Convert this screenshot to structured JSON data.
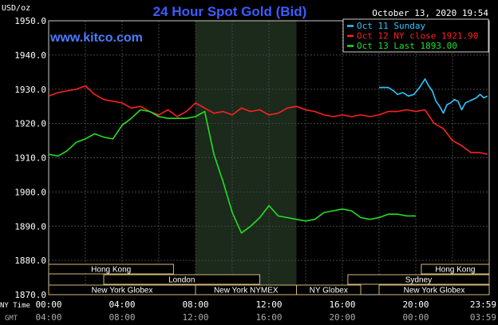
{
  "chart_data": {
    "type": "line",
    "title": "24 Hour Spot Gold (Bid)",
    "website": "www.kitco.com",
    "timestamp": "October 13, 2020 19:54",
    "unit_label": "USD/oz",
    "ylim": [
      1870,
      1950
    ],
    "y_ticks": [
      "1950.0",
      "1940.0",
      "1930.0",
      "1920.0",
      "1910.0",
      "1900.0",
      "1890.0",
      "1880.0",
      "1870.0"
    ],
    "x_row_label_ny": "NY Time",
    "x_row_label_gmt": "GMT",
    "x_ticks_ny": [
      "00:00",
      "04:00",
      "08:00",
      "12:00",
      "16:00",
      "20:00",
      "23:59"
    ],
    "x_ticks_gmt": [
      "04:00",
      "08:00",
      "12:00",
      "16:00",
      "20:00",
      "00:00",
      "03:59"
    ],
    "grid": true,
    "legend_position": "top-right",
    "background": "#000000",
    "plot_border": "#c8c8c8",
    "grid_color": "#444444",
    "shade_color": "#1b2a1b",
    "series": [
      {
        "name": "Oct 11 Sunday",
        "color": "#33c4ff",
        "x": [
          18.0,
          18.5,
          18.8,
          19.0,
          19.3,
          19.6,
          19.9,
          20.2,
          20.5,
          20.7,
          20.9,
          21.1,
          21.3,
          21.5,
          21.7,
          21.9,
          22.1,
          22.3,
          22.5,
          22.7,
          22.9,
          23.1,
          23.3,
          23.5,
          23.7,
          23.9
        ],
        "y": [
          1930.5,
          1930.5,
          1929.5,
          1928.5,
          1929.0,
          1928.0,
          1928.5,
          1930.5,
          1933.0,
          1931.0,
          1929.5,
          1926.5,
          1925.0,
          1923.0,
          1925.5,
          1926.0,
          1927.0,
          1926.5,
          1924.0,
          1926.0,
          1926.5,
          1927.0,
          1927.5,
          1928.5,
          1927.5,
          1928.0
        ]
      },
      {
        "name": "Oct 12 NY close 1921.90",
        "color": "#ff2020",
        "x": [
          0.0,
          0.5,
          1.0,
          1.5,
          2.0,
          2.5,
          3.0,
          3.5,
          4.0,
          4.5,
          5.0,
          5.5,
          6.0,
          6.5,
          7.0,
          7.5,
          8.0,
          8.5,
          9.0,
          9.5,
          10.0,
          10.5,
          11.0,
          11.5,
          12.0,
          12.5,
          13.0,
          13.5,
          14.0,
          14.5,
          15.0,
          15.5,
          16.0,
          16.5,
          17.0,
          17.5,
          18.0,
          18.5,
          19.0,
          19.5,
          20.0,
          20.5,
          21.0,
          21.5,
          22.0,
          22.5,
          23.0,
          23.5,
          23.9
        ],
        "y": [
          1928.0,
          1929.0,
          1929.5,
          1930.0,
          1931.0,
          1928.5,
          1927.0,
          1926.5,
          1926.0,
          1924.5,
          1925.0,
          1923.5,
          1922.5,
          1924.0,
          1922.0,
          1923.5,
          1926.0,
          1924.5,
          1923.0,
          1923.5,
          1922.5,
          1924.5,
          1923.5,
          1924.0,
          1922.5,
          1923.0,
          1924.5,
          1925.0,
          1924.0,
          1923.5,
          1922.5,
          1922.0,
          1922.5,
          1922.0,
          1922.5,
          1922.0,
          1922.5,
          1923.5,
          1923.5,
          1924.0,
          1923.5,
          1924.0,
          1920.0,
          1918.5,
          1915.0,
          1913.5,
          1911.5,
          1911.5,
          1911.0
        ]
      },
      {
        "name": "Oct 13 Last 1893.00",
        "color": "#22e022",
        "x": [
          0.0,
          0.5,
          1.0,
          1.5,
          2.0,
          2.5,
          3.0,
          3.5,
          4.0,
          4.5,
          5.0,
          5.5,
          6.0,
          6.5,
          7.0,
          7.5,
          8.0,
          8.5,
          9.0,
          9.5,
          10.0,
          10.5,
          11.0,
          11.5,
          12.0,
          12.5,
          13.0,
          13.5,
          14.0,
          14.5,
          15.0,
          15.5,
          16.0,
          16.5,
          17.0,
          17.5,
          18.0,
          18.5,
          19.0,
          19.5,
          20.0
        ],
        "y": [
          1911.0,
          1910.5,
          1912.0,
          1914.5,
          1915.5,
          1917.0,
          1916.0,
          1915.5,
          1919.5,
          1921.5,
          1924.0,
          1923.5,
          1922.0,
          1921.5,
          1921.5,
          1921.5,
          1922.0,
          1923.5,
          1911.0,
          1903.0,
          1894.0,
          1888.0,
          1890.0,
          1892.5,
          1896.0,
          1893.0,
          1892.5,
          1892.0,
          1891.5,
          1892.0,
          1894.0,
          1894.5,
          1895.0,
          1894.5,
          1892.5,
          1892.0,
          1892.5,
          1893.5,
          1893.5,
          1893.0,
          1893.0
        ]
      }
    ],
    "shaded_region": {
      "start": 8.0,
      "end": 13.5
    },
    "sessions": [
      {
        "label": "Hong Kong",
        "row": 0,
        "start": 0.0,
        "end": 6.8
      },
      {
        "label": "Hong Kong",
        "row": 0,
        "start": 20.3,
        "end": 24.0
      },
      {
        "label": "London",
        "row": 1,
        "start": 3.0,
        "end": 11.5
      },
      {
        "label": "Sydney",
        "row": 1,
        "start": 16.3,
        "end": 24.0
      },
      {
        "label": "New York Globex",
        "row": 2,
        "start": 0.0,
        "end": 8.0
      },
      {
        "label": "New York NYMEX",
        "row": 2,
        "start": 8.0,
        "end": 13.5
      },
      {
        "label": "NY Globex",
        "row": 2,
        "start": 13.5,
        "end": 17.0
      },
      {
        "label": "New York Globex",
        "row": 2,
        "start": 18.0,
        "end": 24.0
      }
    ]
  }
}
